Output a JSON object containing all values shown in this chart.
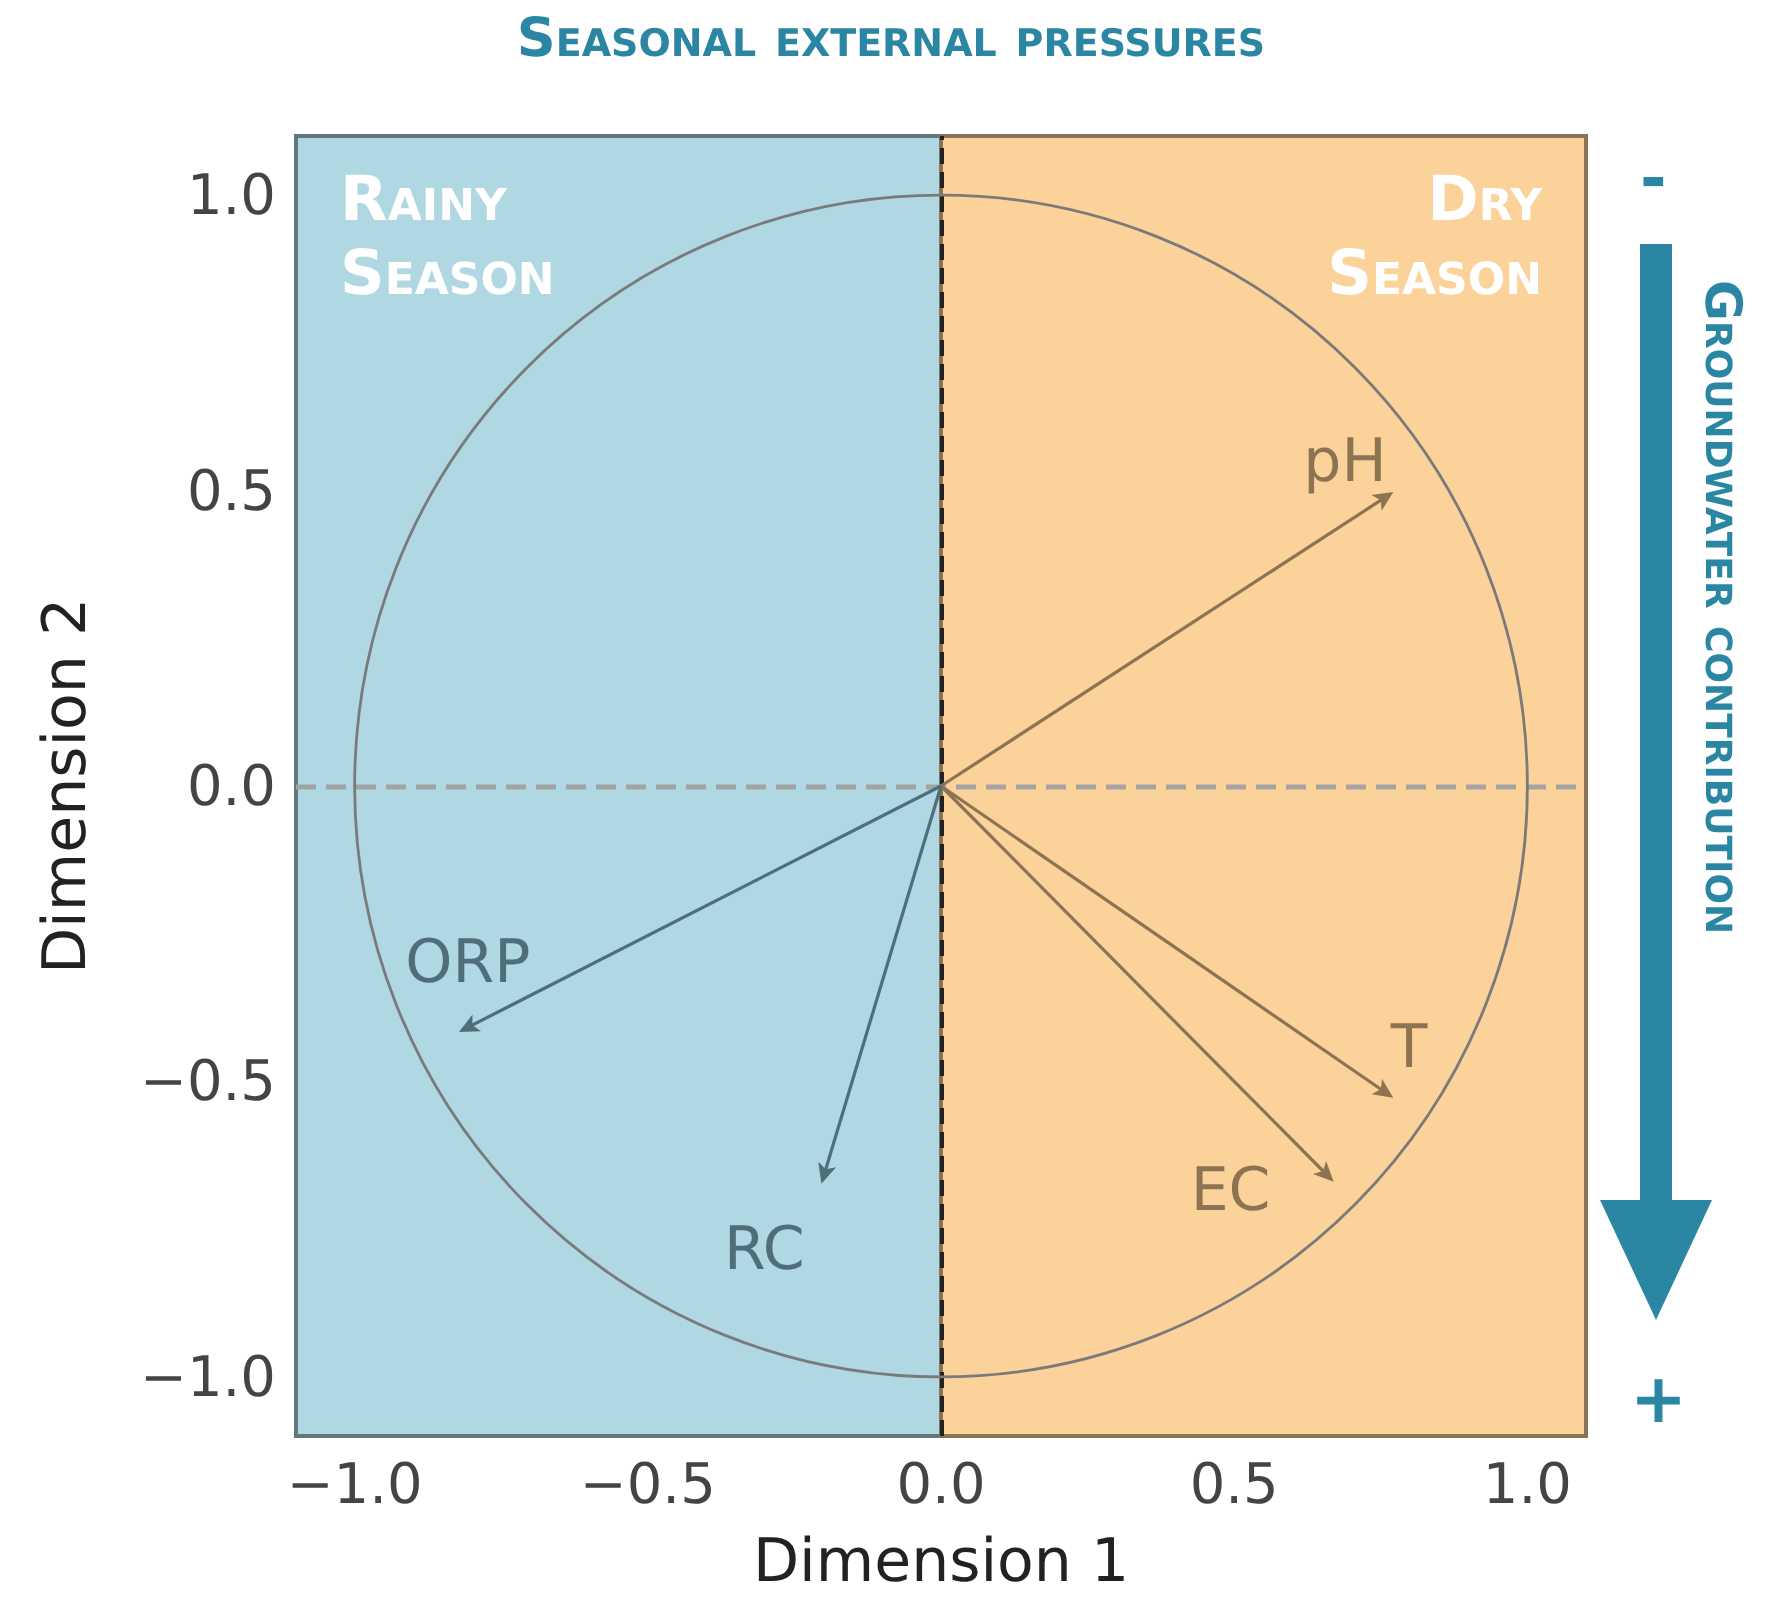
{
  "chart_data": {
    "type": "line",
    "title": "Seasonal external pressures",
    "xlabel": "Dimension 1",
    "ylabel": "Dimension 2",
    "annotations": [
      "Groundwater contribution",
      "-",
      "+"
    ],
    "xlim": [
      -1.1,
      1.1
    ],
    "ylim": [
      -1.1,
      1.1
    ],
    "xticks": [
      {
        "value": -1,
        "label": "−1.0"
      },
      {
        "value": -0.5,
        "label": "−0.5"
      },
      {
        "value": 0,
        "label": "0.0"
      },
      {
        "value": 0.5,
        "label": "0.5"
      },
      {
        "value": 1,
        "label": "1.0"
      }
    ],
    "yticks": [
      {
        "value": -1,
        "label": "−1.0"
      },
      {
        "value": -0.5,
        "label": "−0.5"
      },
      {
        "value": 0,
        "label": "0.0"
      },
      {
        "value": 0.5,
        "label": "0.5"
      },
      {
        "value": 1,
        "label": "1.0"
      }
    ],
    "bands": [
      {
        "axis": "x",
        "from": -1.1,
        "to": 0,
        "label": "Rainy Season",
        "color": "#afd8e3"
      },
      {
        "axis": "x",
        "from": 0,
        "to": 1.1,
        "label": "Dry Season",
        "color": "#fbd29a"
      }
    ],
    "ref_lines": [
      {
        "axis": "x",
        "value": 0,
        "color": "#222222",
        "line_style": "dashed"
      },
      {
        "axis": "y",
        "value": 0,
        "color": "#a3a3a3",
        "line_style": "dashed"
      }
    ],
    "series": [
      {
        "name": "pH",
        "color": "#8c7453",
        "x": [
          0,
          0.76
        ],
        "values": [
          0,
          0.49
        ]
      },
      {
        "name": "T",
        "color": "#8c7453",
        "x": [
          0,
          0.76
        ],
        "values": [
          0,
          -0.52
        ]
      },
      {
        "name": "EC",
        "color": "#8c7453",
        "x": [
          0,
          0.66
        ],
        "values": [
          0,
          -0.66
        ]
      },
      {
        "name": "ORP",
        "color": "#4e6f79",
        "x": [
          0,
          -0.81
        ],
        "values": [
          0,
          -0.41
        ]
      },
      {
        "name": "RC",
        "color": "#4e6f79",
        "x": [
          0,
          -0.2
        ],
        "values": [
          0,
          -0.66
        ]
      }
    ]
  }
}
